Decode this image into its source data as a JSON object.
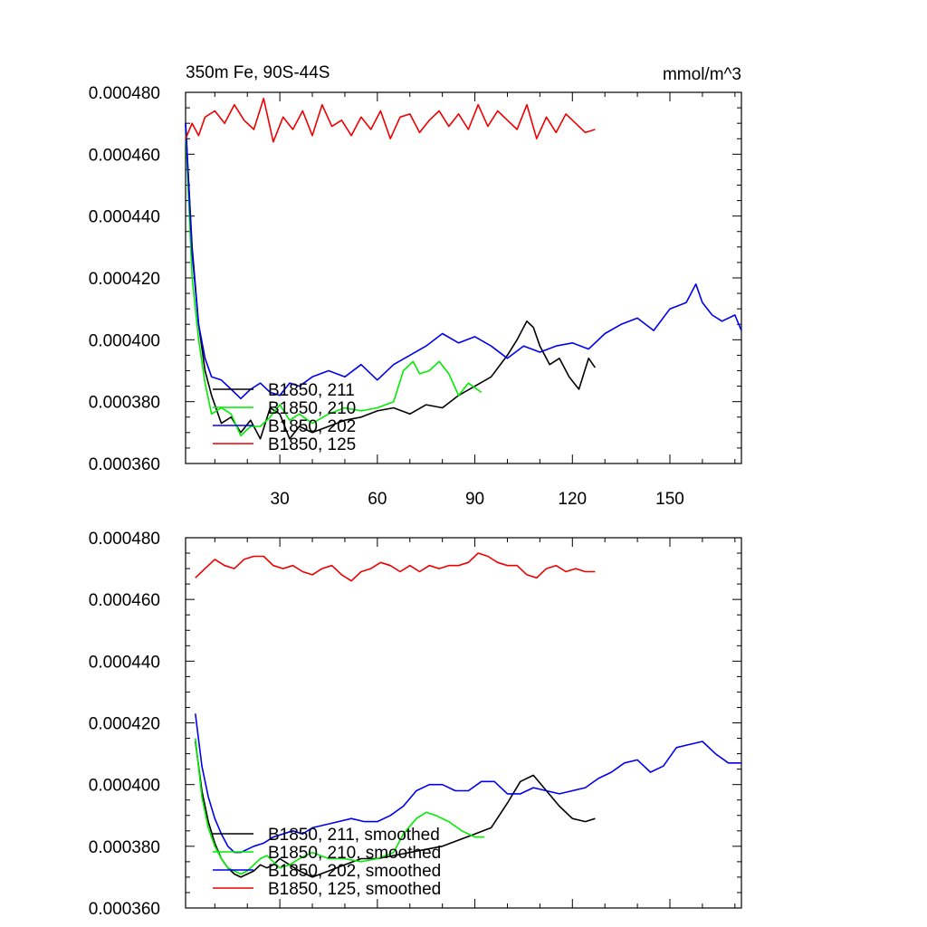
{
  "units": "mmol/m^3",
  "colors": {
    "black": "#000000",
    "green": "#00ee00",
    "blue": "#0000ee",
    "red": "#ee0000"
  },
  "chart_data": [
    {
      "type": "line",
      "title": "350m Fe, 90S-44S",
      "units": "mmol/m^3",
      "xlim": [
        1,
        172
      ],
      "ylim": [
        0.00036,
        0.00048
      ],
      "xticks": [
        30,
        60,
        90,
        120,
        150
      ],
      "xtick_labels": [
        "30",
        "60",
        "90",
        "120",
        "150"
      ],
      "yticks": [
        0.00036,
        0.00038,
        0.0004,
        0.00042,
        0.00044,
        0.00046,
        0.00048
      ],
      "ytick_labels": [
        "0.000360",
        "0.000380",
        "0.000400",
        "0.000420",
        "0.000440",
        "0.000460",
        "0.000480"
      ],
      "legend_position": "bottom-left",
      "series": [
        {
          "name": "B1850, 211",
          "color": "#000000",
          "x": [
            1,
            3,
            5,
            7,
            9,
            12,
            15,
            18,
            21,
            24,
            27,
            30,
            33,
            36,
            40,
            45,
            50,
            55,
            60,
            65,
            70,
            75,
            80,
            85,
            90,
            95,
            100,
            103,
            106,
            108,
            110,
            113,
            116,
            119,
            122,
            125,
            127
          ],
          "values": [
            0.00047,
            0.00043,
            0.000405,
            0.00039,
            0.000382,
            0.000373,
            0.000375,
            0.00037,
            0.000374,
            0.000368,
            0.000378,
            0.000376,
            0.000368,
            0.000372,
            0.00037,
            0.000372,
            0.000374,
            0.000375,
            0.000377,
            0.000378,
            0.000376,
            0.000379,
            0.000378,
            0.000382,
            0.000385,
            0.000388,
            0.000395,
            0.0004,
            0.000406,
            0.000404,
            0.000398,
            0.000392,
            0.000394,
            0.000388,
            0.000384,
            0.000394,
            0.000391
          ]
        },
        {
          "name": "B1850, 210",
          "color": "#00ee00",
          "x": [
            1,
            3,
            5,
            7,
            9,
            12,
            15,
            18,
            21,
            24,
            27,
            30,
            33,
            36,
            40,
            45,
            50,
            55,
            60,
            65,
            68,
            71,
            73,
            76,
            79,
            82,
            85,
            88,
            92
          ],
          "values": [
            0.000468,
            0.00042,
            0.0004,
            0.000386,
            0.000376,
            0.000378,
            0.000376,
            0.000369,
            0.000372,
            0.000372,
            0.000375,
            0.000379,
            0.000374,
            0.000376,
            0.000373,
            0.000376,
            0.000378,
            0.000377,
            0.000378,
            0.00038,
            0.00039,
            0.000393,
            0.000389,
            0.00039,
            0.000393,
            0.000389,
            0.000382,
            0.000386,
            0.000383
          ]
        },
        {
          "name": "B1850, 202",
          "color": "#0000ee",
          "x": [
            1,
            3,
            5,
            7,
            9,
            12,
            15,
            18,
            21,
            24,
            27,
            30,
            33,
            36,
            40,
            45,
            50,
            55,
            60,
            65,
            70,
            75,
            80,
            85,
            90,
            95,
            100,
            105,
            110,
            115,
            120,
            125,
            130,
            135,
            140,
            145,
            150,
            155,
            158,
            160,
            163,
            166,
            170,
            172
          ],
          "values": [
            0.00047,
            0.000428,
            0.000405,
            0.000394,
            0.000388,
            0.000387,
            0.000384,
            0.000381,
            0.000384,
            0.000386,
            0.000383,
            0.000382,
            0.000386,
            0.000385,
            0.000388,
            0.00039,
            0.000388,
            0.000392,
            0.000387,
            0.000392,
            0.000395,
            0.000398,
            0.000402,
            0.000399,
            0.000401,
            0.000398,
            0.000394,
            0.000398,
            0.000396,
            0.000398,
            0.000399,
            0.000397,
            0.000402,
            0.000405,
            0.000407,
            0.000403,
            0.00041,
            0.000412,
            0.000418,
            0.000412,
            0.000408,
            0.000406,
            0.000408,
            0.000403
          ]
        },
        {
          "name": "B1850, 125",
          "color": "#ee0000",
          "x": [
            1,
            3,
            5,
            7,
            10,
            13,
            16,
            19,
            22,
            25,
            28,
            31,
            34,
            37,
            40,
            43,
            46,
            49,
            52,
            55,
            58,
            61,
            64,
            67,
            70,
            73,
            76,
            79,
            82,
            85,
            88,
            91,
            94,
            97,
            100,
            103,
            106,
            109,
            112,
            115,
            118,
            121,
            124,
            127
          ],
          "values": [
            0.000465,
            0.00047,
            0.000466,
            0.000472,
            0.000474,
            0.00047,
            0.000476,
            0.000471,
            0.000468,
            0.000478,
            0.000464,
            0.000472,
            0.000468,
            0.000474,
            0.000466,
            0.000476,
            0.000469,
            0.000471,
            0.000466,
            0.000472,
            0.000468,
            0.000474,
            0.000465,
            0.000472,
            0.000473,
            0.000467,
            0.000471,
            0.000474,
            0.000469,
            0.000473,
            0.000468,
            0.000476,
            0.000469,
            0.000474,
            0.000471,
            0.000468,
            0.000476,
            0.000465,
            0.000472,
            0.000467,
            0.000473,
            0.00047,
            0.000467,
            0.000468
          ]
        }
      ]
    },
    {
      "type": "line",
      "xlim": [
        1,
        172
      ],
      "ylim": [
        0.00036,
        0.00048
      ],
      "xticks": [
        30,
        60,
        90,
        120,
        150
      ],
      "yticks": [
        0.00036,
        0.00038,
        0.0004,
        0.00042,
        0.00044,
        0.00046,
        0.00048
      ],
      "ytick_labels": [
        "0.000360",
        "0.000380",
        "0.000400",
        "0.000420",
        "0.000440",
        "0.000460",
        "0.000480"
      ],
      "legend_position": "bottom-left",
      "series": [
        {
          "name": "B1850, 211, smoothed",
          "color": "#000000",
          "x": [
            4,
            6,
            8,
            10,
            12,
            14,
            16,
            18,
            20,
            22,
            24,
            26,
            28,
            30,
            33,
            36,
            40,
            45,
            50,
            55,
            60,
            65,
            70,
            75,
            80,
            85,
            90,
            95,
            100,
            104,
            108,
            112,
            116,
            120,
            124,
            127
          ],
          "values": [
            0.000414,
            0.000398,
            0.000388,
            0.000381,
            0.000376,
            0.000373,
            0.000371,
            0.00037,
            0.000371,
            0.000372,
            0.000374,
            0.000373,
            0.000374,
            0.000376,
            0.000374,
            0.000372,
            0.00037,
            0.000372,
            0.000374,
            0.000376,
            0.000376,
            0.000377,
            0.000378,
            0.000379,
            0.00038,
            0.000382,
            0.000384,
            0.000386,
            0.000394,
            0.000401,
            0.000403,
            0.000398,
            0.000393,
            0.000389,
            0.000388,
            0.000389
          ]
        },
        {
          "name": "B1850, 210, smoothed",
          "color": "#00ee00",
          "x": [
            4,
            6,
            8,
            10,
            12,
            14,
            16,
            18,
            20,
            22,
            24,
            26,
            28,
            30,
            33,
            36,
            40,
            45,
            50,
            55,
            60,
            65,
            68,
            72,
            75,
            78,
            82,
            86,
            90,
            93
          ],
          "values": [
            0.000415,
            0.000396,
            0.000386,
            0.00038,
            0.000376,
            0.000373,
            0.000372,
            0.000371,
            0.000372,
            0.000374,
            0.000376,
            0.000377,
            0.000375,
            0.000373,
            0.000374,
            0.000376,
            0.000378,
            0.000376,
            0.000376,
            0.000375,
            0.000376,
            0.000378,
            0.000384,
            0.000389,
            0.000391,
            0.00039,
            0.000388,
            0.000385,
            0.000383,
            0.000383
          ]
        },
        {
          "name": "B1850, 202, smoothed",
          "color": "#0000ee",
          "x": [
            4,
            6,
            8,
            10,
            12,
            14,
            16,
            18,
            20,
            22,
            25,
            28,
            31,
            34,
            37,
            40,
            44,
            48,
            52,
            56,
            60,
            64,
            68,
            72,
            76,
            80,
            84,
            88,
            92,
            96,
            100,
            104,
            108,
            112,
            116,
            120,
            124,
            128,
            132,
            136,
            140,
            144,
            148,
            152,
            156,
            160,
            164,
            168,
            172
          ],
          "values": [
            0.000423,
            0.000406,
            0.000396,
            0.000389,
            0.000384,
            0.00038,
            0.000378,
            0.000378,
            0.000379,
            0.00038,
            0.000381,
            0.000383,
            0.000384,
            0.000385,
            0.000384,
            0.000386,
            0.000387,
            0.000388,
            0.000389,
            0.000388,
            0.000388,
            0.00039,
            0.000393,
            0.000398,
            0.0004,
            0.0004,
            0.000398,
            0.000398,
            0.000401,
            0.000401,
            0.000397,
            0.000397,
            0.000399,
            0.000398,
            0.000397,
            0.000398,
            0.000399,
            0.000402,
            0.000404,
            0.000407,
            0.000408,
            0.000404,
            0.000406,
            0.000412,
            0.000413,
            0.000414,
            0.00041,
            0.000407,
            0.000407
          ]
        },
        {
          "name": "B1850, 125, smoothed",
          "color": "#ee0000",
          "x": [
            4,
            7,
            10,
            13,
            16,
            19,
            22,
            25,
            28,
            31,
            34,
            37,
            40,
            43,
            46,
            49,
            52,
            55,
            58,
            61,
            64,
            67,
            70,
            73,
            76,
            79,
            82,
            85,
            88,
            91,
            94,
            97,
            100,
            103,
            106,
            109,
            112,
            115,
            118,
            121,
            124,
            127
          ],
          "values": [
            0.000467,
            0.00047,
            0.000473,
            0.000471,
            0.00047,
            0.000473,
            0.000474,
            0.000474,
            0.000471,
            0.00047,
            0.000471,
            0.000469,
            0.000468,
            0.00047,
            0.000471,
            0.000468,
            0.000466,
            0.000469,
            0.00047,
            0.000472,
            0.000471,
            0.000469,
            0.000471,
            0.000469,
            0.000471,
            0.00047,
            0.000471,
            0.000471,
            0.000472,
            0.000475,
            0.000474,
            0.000472,
            0.000471,
            0.000471,
            0.000468,
            0.000467,
            0.00047,
            0.000471,
            0.000469,
            0.00047,
            0.000469,
            0.000469
          ]
        }
      ]
    }
  ]
}
